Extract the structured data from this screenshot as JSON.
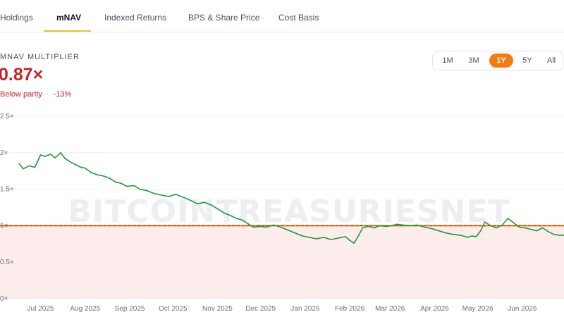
{
  "tabs": [
    {
      "label": "Holdings",
      "active": false
    },
    {
      "label": "mNAV",
      "active": true
    },
    {
      "label": "Indexed Returns",
      "active": false
    },
    {
      "label": "BPS & Share Price",
      "active": false
    },
    {
      "label": "Cost Basis",
      "active": false
    }
  ],
  "metric": {
    "label": "MNAV MULTIPLIER",
    "value": "0.87×",
    "status": "Below parity",
    "change": "-13%"
  },
  "ranges": [
    {
      "label": "1M",
      "active": false
    },
    {
      "label": "3M",
      "active": false
    },
    {
      "label": "1Y",
      "active": true
    },
    {
      "label": "5Y",
      "active": false
    },
    {
      "label": "All",
      "active": false
    }
  ],
  "watermark": "BITCOINTREASURIESNET",
  "colors": {
    "line": "#1f9a3c",
    "parity_line": "#e07a12",
    "parity_dash": "#c0262d",
    "below_fill": "#fdecec",
    "accent": "#f07c13",
    "negative": "#c0262d"
  },
  "chart_data": {
    "type": "line",
    "title": "",
    "xlabel": "",
    "ylabel": "",
    "x_range": [
      "2025-06-16",
      "2026-06-30"
    ],
    "ylim": [
      0,
      2.5
    ],
    "y_ticks": [
      0,
      0.5,
      1,
      1.5,
      2,
      2.5
    ],
    "y_tick_labels": [
      "0×",
      "0.5×",
      "1×",
      "1.5×",
      "2×",
      "2.5×"
    ],
    "x_ticks": [
      {
        "date": "2025-07-01",
        "label": "Jul 2025"
      },
      {
        "date": "2025-08-01",
        "label": "Aug 2025"
      },
      {
        "date": "2025-09-01",
        "label": "Sep 2025"
      },
      {
        "date": "2025-10-01",
        "label": "Oct 2025"
      },
      {
        "date": "2025-11-01",
        "label": "Nov 2025"
      },
      {
        "date": "2025-12-01",
        "label": "Dec 2025"
      },
      {
        "date": "2026-01-01",
        "label": "Jan 2026"
      },
      {
        "date": "2026-02-01",
        "label": "Feb 2026"
      },
      {
        "date": "2026-03-01",
        "label": "Mar 2026"
      },
      {
        "date": "2026-04-01",
        "label": "Apr 2026"
      },
      {
        "date": "2026-05-01",
        "label": "May 2026"
      },
      {
        "date": "2026-06-01",
        "label": "Jun 2026"
      }
    ],
    "reference_line": {
      "y": 1.0
    },
    "grid": true,
    "series": [
      {
        "x": [
          "2025-06-16",
          "2025-06-19",
          "2025-06-23",
          "2025-06-27",
          "2025-07-01",
          "2025-07-04",
          "2025-07-08",
          "2025-07-11",
          "2025-07-15",
          "2025-07-18",
          "2025-07-22",
          "2025-07-25",
          "2025-07-29",
          "2025-08-01",
          "2025-08-05",
          "2025-08-09",
          "2025-08-14",
          "2025-08-18",
          "2025-08-22",
          "2025-08-26",
          "2025-08-30",
          "2025-09-04",
          "2025-09-08",
          "2025-09-13",
          "2025-09-18",
          "2025-09-23",
          "2025-09-28",
          "2025-10-03",
          "2025-10-08",
          "2025-10-13",
          "2025-10-18",
          "2025-10-23",
          "2025-10-28",
          "2025-11-02",
          "2025-11-06",
          "2025-11-10",
          "2025-11-14",
          "2025-11-18",
          "2025-11-22",
          "2025-11-26",
          "2025-12-01",
          "2025-12-05",
          "2025-12-10",
          "2025-12-15",
          "2025-12-20",
          "2025-12-25",
          "2025-12-30",
          "2026-01-04",
          "2026-01-09",
          "2026-01-14",
          "2026-01-19",
          "2026-01-24",
          "2026-01-29",
          "2026-02-01",
          "2026-02-04",
          "2026-02-07",
          "2026-02-10",
          "2026-02-14",
          "2026-02-18",
          "2026-02-22",
          "2026-02-26",
          "2026-03-02",
          "2026-03-06",
          "2026-03-10",
          "2026-03-15",
          "2026-03-20",
          "2026-03-25",
          "2026-03-30",
          "2026-04-04",
          "2026-04-09",
          "2026-04-14",
          "2026-04-19",
          "2026-04-24",
          "2026-04-27",
          "2026-04-30",
          "2026-05-03",
          "2026-05-06",
          "2026-05-10",
          "2026-05-14",
          "2026-05-18",
          "2026-05-22",
          "2026-05-26",
          "2026-05-30",
          "2026-06-03",
          "2026-06-07",
          "2026-06-11",
          "2026-06-15",
          "2026-06-19",
          "2026-06-23",
          "2026-06-27",
          "2026-06-30"
        ],
        "y": [
          1.85,
          1.78,
          1.82,
          1.8,
          1.97,
          1.95,
          1.98,
          1.93,
          2.0,
          1.92,
          1.87,
          1.84,
          1.8,
          1.79,
          1.73,
          1.7,
          1.68,
          1.65,
          1.6,
          1.58,
          1.54,
          1.55,
          1.5,
          1.48,
          1.44,
          1.42,
          1.4,
          1.43,
          1.39,
          1.35,
          1.3,
          1.32,
          1.28,
          1.22,
          1.17,
          1.14,
          1.1,
          1.08,
          1.03,
          0.98,
          0.99,
          0.98,
          1.01,
          0.98,
          0.94,
          0.9,
          0.86,
          0.84,
          0.82,
          0.84,
          0.81,
          0.83,
          0.85,
          0.8,
          0.76,
          0.86,
          0.97,
          0.99,
          0.97,
          1.0,
          0.99,
          1.0,
          1.02,
          1.01,
          1.0,
          1.01,
          0.98,
          0.96,
          0.93,
          0.9,
          0.88,
          0.87,
          0.84,
          0.86,
          0.85,
          0.93,
          1.05,
          1.0,
          0.97,
          1.01,
          1.1,
          1.04,
          0.98,
          0.97,
          0.95,
          0.93,
          0.97,
          0.92,
          0.88,
          0.87,
          0.87
        ]
      }
    ]
  }
}
